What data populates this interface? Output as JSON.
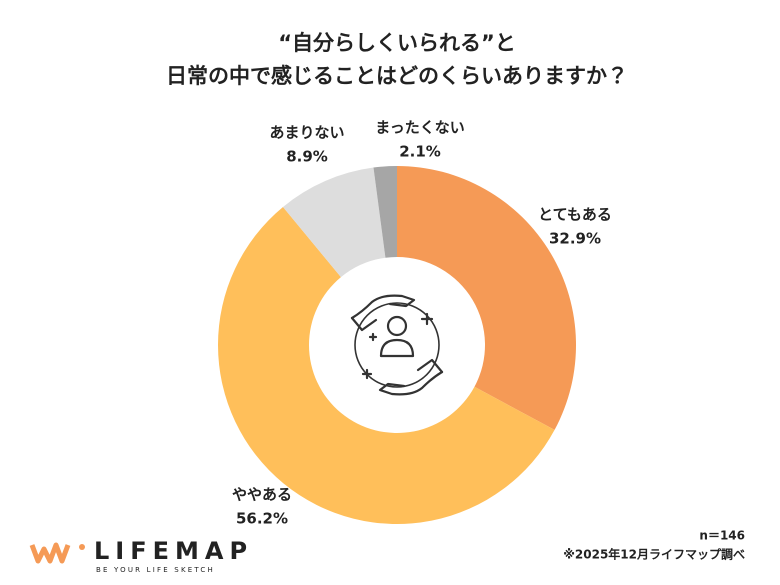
{
  "chart_data": {
    "type": "donut",
    "title": [
      "“自分らしくいられる”と",
      "日常の中で感じることはどのくらいありますか？"
    ],
    "categories": [
      "とてもある",
      "ややある",
      "あまりない",
      "まったくない"
    ],
    "values": [
      32.9,
      56.2,
      8.9,
      2.1
    ],
    "value_labels": [
      "32.9%",
      "56.2%",
      "8.9%",
      "2.1%"
    ],
    "colors": [
      "#F59A56",
      "#FFBF5A",
      "#DDDDDD",
      "#A6A6A6"
    ],
    "note": "n＝146",
    "source": "※2025年12月ライフマップ調べ"
  },
  "logo": {
    "name": "LIFEMAP",
    "tagline": "BE YOUR LIFE SKETCH"
  }
}
